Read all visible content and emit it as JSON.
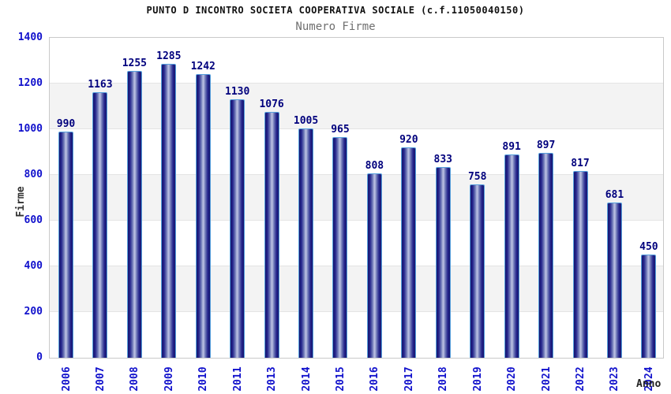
{
  "header": {
    "title": "PUNTO D INCONTRO SOCIETA COOPERATIVA SOCIALE (c.f.11050040150)",
    "subtitle": "Numero Firme"
  },
  "chart_data": {
    "type": "bar",
    "title": "PUNTO D INCONTRO SOCIETA COOPERATIVA SOCIALE (c.f.11050040150)",
    "subtitle": "Numero Firme",
    "xlabel": "Anno",
    "ylabel": "Firme",
    "categories": [
      "2006",
      "2007",
      "2008",
      "2009",
      "2010",
      "2011",
      "2013",
      "2014",
      "2015",
      "2016",
      "2017",
      "2018",
      "2019",
      "2020",
      "2021",
      "2022",
      "2023",
      "2024"
    ],
    "values": [
      990,
      1163,
      1255,
      1285,
      1242,
      1130,
      1076,
      1005,
      965,
      808,
      920,
      833,
      758,
      891,
      897,
      817,
      681,
      450
    ],
    "ylim": [
      0,
      1400
    ],
    "yticks": [
      0,
      200,
      400,
      600,
      800,
      1000,
      1200,
      1400
    ],
    "ytick_interval": 200,
    "grid": "horizontal-bands",
    "legend": "none",
    "colors": {
      "bar_edge_dark": "#16166d",
      "bar_dark": "#24248c",
      "bar_mid": "#6a74b5",
      "bar_highlight": "#b7bde0",
      "bar_border": "#56a0dd",
      "value_label": "#00007d",
      "tick_label": "#1111cc",
      "axis_title": "#333333",
      "band_gray": "#f3f3f3",
      "plot_border": "#c9c9c9",
      "subtitle_gray": "#6f6f6f"
    }
  }
}
